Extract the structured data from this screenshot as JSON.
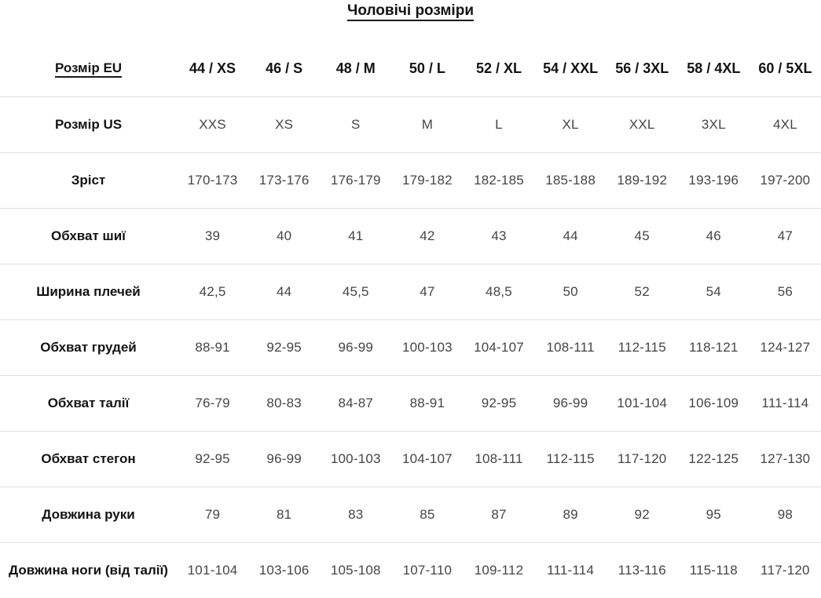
{
  "title": "Чоловічі розміри",
  "table": {
    "header": {
      "label": "Розмір EU",
      "values": [
        "44 / XS",
        "46 / S",
        "48 / M",
        "50 / L",
        "52 / XL",
        "54 / XXL",
        "56 / 3XL",
        "58 / 4XL",
        "60 / 5XL"
      ]
    },
    "rows": [
      {
        "label": "Розмір US",
        "values": [
          "XXS",
          "XS",
          "S",
          "M",
          "L",
          "XL",
          "XXL",
          "3XL",
          "4XL"
        ]
      },
      {
        "label": "Зріст",
        "values": [
          "170-173",
          "173-176",
          "176-179",
          "179-182",
          "182-185",
          "185-188",
          "189-192",
          "193-196",
          "197-200"
        ]
      },
      {
        "label": "Обхват шиї",
        "values": [
          "39",
          "40",
          "41",
          "42",
          "43",
          "44",
          "45",
          "46",
          "47"
        ]
      },
      {
        "label": "Ширина плечей",
        "values": [
          "42,5",
          "44",
          "45,5",
          "47",
          "48,5",
          "50",
          "52",
          "54",
          "56"
        ]
      },
      {
        "label": "Обхват грудей",
        "values": [
          "88-91",
          "92-95",
          "96-99",
          "100-103",
          "104-107",
          "108-111",
          "112-115",
          "118-121",
          "124-127"
        ]
      },
      {
        "label": "Обхват талії",
        "values": [
          "76-79",
          "80-83",
          "84-87",
          "88-91",
          "92-95",
          "96-99",
          "101-104",
          "106-109",
          "111-114"
        ]
      },
      {
        "label": "Обхват стегон",
        "values": [
          "92-95",
          "96-99",
          "100-103",
          "104-107",
          "108-111",
          "112-115",
          "117-120",
          "122-125",
          "127-130"
        ]
      },
      {
        "label": "Довжина руки",
        "values": [
          "79",
          "81",
          "83",
          "85",
          "87",
          "89",
          "92",
          "95",
          "98"
        ]
      },
      {
        "label": "Довжина ноги (від талії)",
        "values": [
          "101-104",
          "103-106",
          "105-108",
          "107-110",
          "109-112",
          "111-114",
          "113-116",
          "115-118",
          "117-120"
        ]
      }
    ]
  },
  "colors": {
    "heading_text": "#131313",
    "value_text": "#454545",
    "divider": "#e0e0e0",
    "background": "#ffffff"
  }
}
